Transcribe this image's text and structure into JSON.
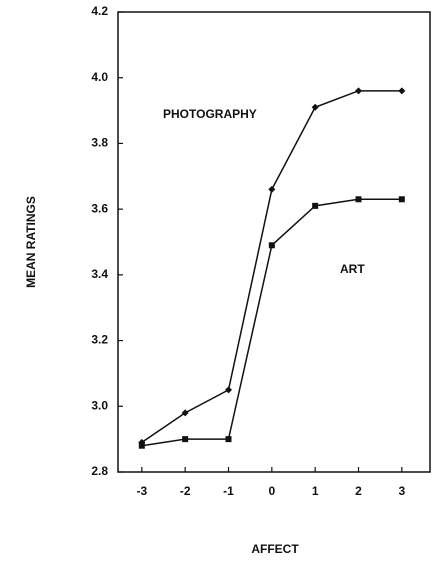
{
  "chart_data": {
    "type": "line",
    "x_label": "AFFECT",
    "y_label": "MEAN RATINGS",
    "x": [
      -3,
      -2,
      -1,
      0,
      1,
      2,
      3
    ],
    "series": [
      {
        "name": "PHOTOGRAPHY",
        "color": "#111111",
        "marker": "diamond",
        "values": [
          2.89,
          2.98,
          3.05,
          3.66,
          3.91,
          3.96,
          3.96
        ]
      },
      {
        "name": "ART",
        "color": "#111111",
        "marker": "square",
        "values": [
          2.88,
          2.9,
          2.9,
          3.49,
          3.61,
          3.63,
          3.63
        ]
      }
    ],
    "xlim": [
      -3.55,
      3.65
    ],
    "xticks": [
      -3,
      -2,
      -1,
      0,
      1,
      2,
      3
    ],
    "ylim": [
      2.8,
      4.2
    ],
    "yticks": [
      2.8,
      {
        "value": 3,
        "label": "3.0"
      },
      3.2,
      3.4,
      3.6,
      3.8,
      {
        "value": 4,
        "label": "4.0"
      },
      4.2
    ],
    "grid": false
  }
}
